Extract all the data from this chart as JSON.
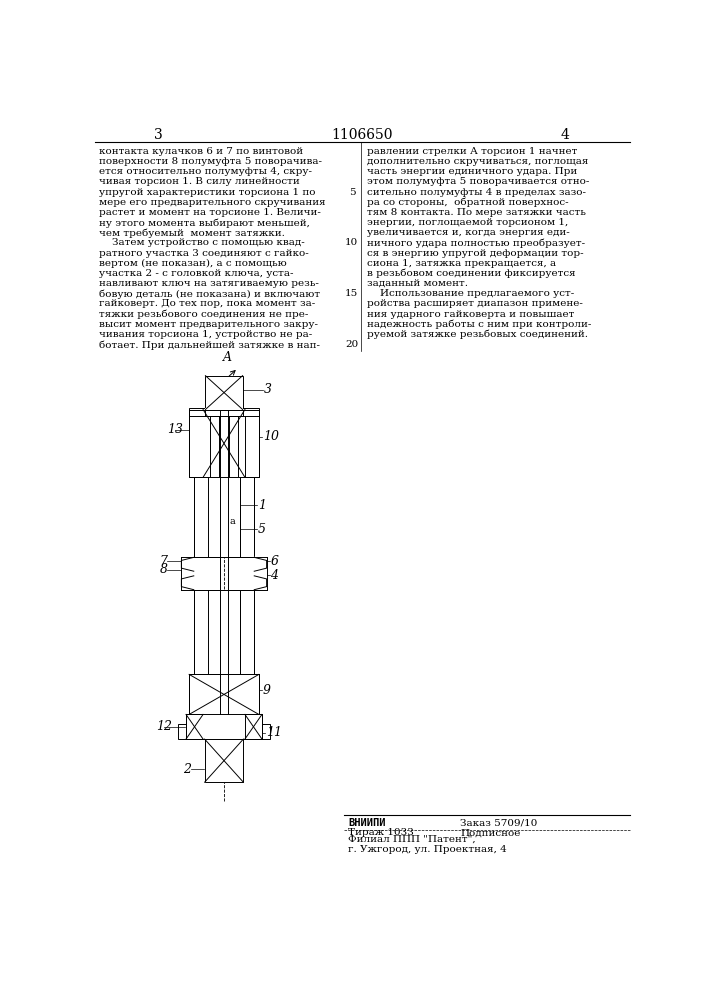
{
  "page_number_left": "3",
  "page_number_center": "1106650",
  "page_number_right": "4",
  "text_left_lines": [
    "контакта кулачков 6 и 7 по винтовой",
    "поверхности 8 полумуфта 5 поворачива-",
    "ется относительно полумуфты 4, скру-",
    "чивая торсион 1. В силу линейности",
    "упругой характеристики торсиона 1 по",
    "мере его предварительного скручивания",
    "растет и момент на торсионе 1. Величи-",
    "ну этого момента выбирают меньшей,",
    "чем требуемый  момент затяжки.",
    "    Затем устройство с помощью квад-",
    "ратного участка 3 соединяют с гайко-",
    "вертом (не показан), а с помощью",
    "участка 2 - с головкой ключа, уста-",
    "навливают ключ на затягиваемую резь-",
    "бовую деталь (не показана) и включают",
    "гайковерт. До тех пор, пока момент за-",
    "тяжки резьбового соединения не пре-",
    "высит момент предварительного закру-",
    "чивания торсиона 1, устройство не ра-",
    "ботает. При дальнейшей затяжке в нап-"
  ],
  "text_right_lines": [
    "равлении стрелки А торсион 1 начнет",
    "дополнительно скручиваться, поглощая",
    "часть энергии единичного удара. При",
    "этом полумуфта 5 поворачивается отно-",
    "сительно полумуфты 4 в пределах зазо-",
    "ра со стороны,  обратной поверхнос-",
    "тям 8 контакта. По мере затяжки часть",
    "энергии, поглощаемой торсионом 1,",
    "увеличивается и, когда энергия еди-",
    "ничного удара полностью преобразует-",
    "ся в энергию упругой деформации тор-",
    "сиона 1, затяжка прекращается, а",
    "в резьбовом соединении фиксируется",
    "заданный момент.",
    "    Использование предлагаемого уст-",
    "ройства расширяет диапазон примене-",
    "ния ударного гайковерта и повышает",
    "надежность работы с ним при контроли-",
    "руемой затяжке резьбовых соединений."
  ],
  "line_nums": [
    5,
    10,
    15,
    20
  ],
  "footer_org": "ВНИИПИ",
  "footer_order": "Заказ 5709/10",
  "footer_tirazh": "Тираж 1033",
  "footer_podpisnoe": "Подписное",
  "footer_filial": "Филиал ППП \"Патент\",",
  "footer_address": "г. Ужгород, ул. Проектная, 4",
  "bg_color": "#ffffff",
  "line_color": "#000000",
  "text_color": "#000000"
}
